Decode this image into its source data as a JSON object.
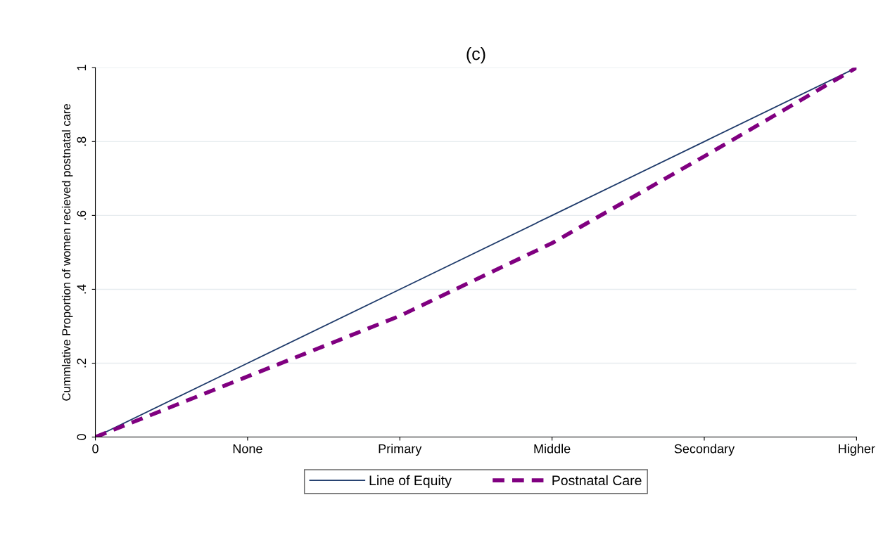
{
  "chart_data": {
    "type": "line",
    "title": "(c)",
    "ylabel": "Cummlative Proportion of women recieved postnatal care",
    "categories": [
      "0",
      "None",
      "Primary",
      "Middle",
      "Secondary",
      "Higher"
    ],
    "series": [
      {
        "name": "Line of Equity",
        "color": "#1f3b6b",
        "line_style": "solid",
        "values": [
          0,
          0.2,
          0.4,
          0.6,
          0.8,
          1
        ]
      },
      {
        "name": "Postnatal Care",
        "color": "#800080",
        "line_style": "dashed",
        "values": [
          0,
          0.164,
          0.328,
          0.525,
          0.76,
          1
        ]
      }
    ],
    "ylim": [
      0,
      1
    ],
    "yticks": [
      0,
      {
        "value": 0.2,
        "label": ".2"
      },
      {
        "value": 0.4,
        "label": ".4"
      },
      {
        "value": 0.6,
        "label": ".6"
      },
      {
        "value": 0.8,
        "label": ".8"
      },
      1
    ],
    "grid": "y",
    "legend": "bottom"
  }
}
